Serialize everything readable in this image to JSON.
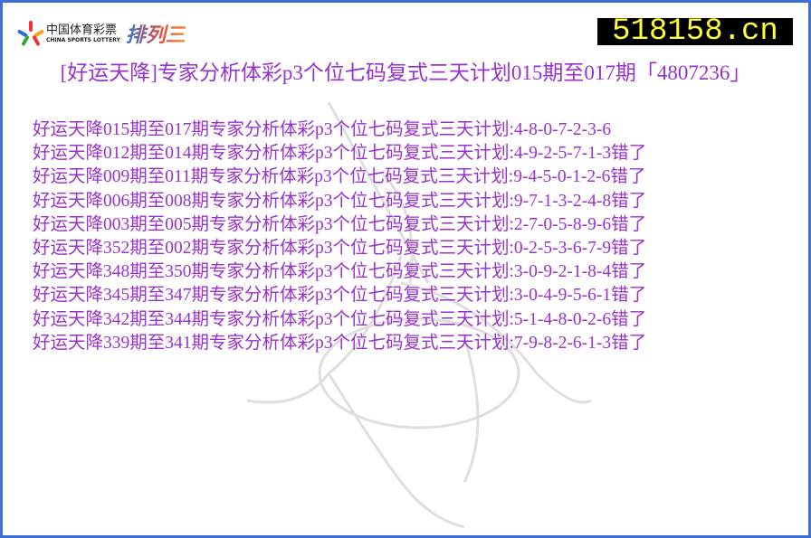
{
  "logo": {
    "cn": "中国体育彩票",
    "en": "CHINA SPORTS LOTTERY",
    "product": "排列三"
  },
  "site": "518158.cn",
  "title": "[好运天降]专家分析体彩p3个位七码复式三天计划015期至017期「4807236」",
  "colors": {
    "text": "#9932cc",
    "border": "#3d6fd6",
    "site_text": "#ffff33"
  },
  "rows": [
    "好运天降015期至017期专家分析体彩p3个位七码复式三天计划:4-8-0-7-2-3-6",
    "好运天降012期至014期专家分析体彩p3个位七码复式三天计划:4-9-2-5-7-1-3错了",
    "好运天降009期至011期专家分析体彩p3个位七码复式三天计划:9-4-5-0-1-2-6错了",
    "好运天降006期至008期专家分析体彩p3个位七码复式三天计划:9-7-1-3-2-4-8错了",
    "好运天降003期至005期专家分析体彩p3个位七码复式三天计划:2-7-0-5-8-9-6错了",
    "好运天降352期至002期专家分析体彩p3个位七码复式三天计划:0-2-5-3-6-7-9错了",
    "好运天降348期至350期专家分析体彩p3个位七码复式三天计划:3-0-9-2-1-8-4错了",
    "好运天降345期至347期专家分析体彩p3个位七码复式三天计划:3-0-4-9-5-6-1错了",
    "好运天降342期至344期专家分析体彩p3个位七码复式三天计划:5-1-4-8-0-2-6错了",
    "好运天降339期至341期专家分析体彩p3个位七码复式三天计划:7-9-8-2-6-1-3错了"
  ]
}
